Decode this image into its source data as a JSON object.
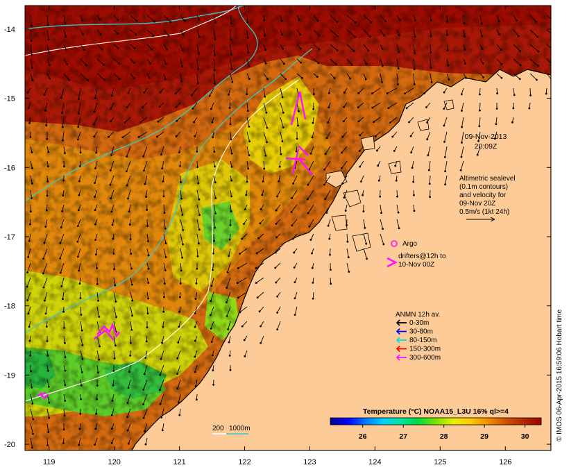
{
  "map": {
    "lat_ticks": [
      {
        "label": "-14",
        "value": -14
      },
      {
        "label": "-15",
        "value": -15
      },
      {
        "label": "-16",
        "value": -16
      },
      {
        "label": "-17",
        "value": -17
      },
      {
        "label": "-18",
        "value": -18
      },
      {
        "label": "-19",
        "value": -19
      },
      {
        "label": "-20",
        "value": -20
      }
    ],
    "lon_ticks": [
      {
        "label": "119",
        "value": 119
      },
      {
        "label": "120",
        "value": 120
      },
      {
        "label": "121",
        "value": 121
      },
      {
        "label": "122",
        "value": 122
      },
      {
        "label": "123",
        "value": 123
      },
      {
        "label": "124",
        "value": 124
      },
      {
        "label": "125",
        "value": 125
      },
      {
        "label": "126",
        "value": 126
      }
    ],
    "lon_range": [
      118.63,
      126.7
    ],
    "lat_range": [
      -20.09,
      -13.66
    ],
    "colors": {
      "land": "#fccb98",
      "coast": "#000000",
      "contour_200m": "#ffffff",
      "contour_1000m": "#3cc8c8",
      "argo_drifter": "#ff10ff"
    }
  },
  "timestamp": {
    "line1": "09-Nov-2013",
    "line2": "20:09Z"
  },
  "altimetry_note": {
    "lines": [
      "Altimetric sealevel",
      "(0.1m contours)",
      "and velocity for",
      "09-Nov 20Z",
      "0.5m/s (1kt 24h)"
    ]
  },
  "argo": {
    "label": "Argo"
  },
  "drifters": {
    "line1": "drifters@12h to",
    "line2": "10-Nov 00Z"
  },
  "anmn": {
    "title": "ANMN 12h av.",
    "items": [
      {
        "label": "0-30m",
        "color": "#000000"
      },
      {
        "label": "30-80m",
        "color": "#0000ff"
      },
      {
        "label": "80-150m",
        "color": "#00e0e0"
      },
      {
        "label": "150-300m",
        "color": "#ff0000"
      },
      {
        "label": "300-600m",
        "color": "#ff10ff"
      }
    ]
  },
  "isobath_legend": {
    "label_200": "200",
    "label_1000": "1000m"
  },
  "colorbar": {
    "title": "Temperature (°C) NOAA15_L3U 16% ql>=4",
    "range": [
      25.2,
      30.4
    ],
    "ticks": [
      {
        "label": "26",
        "value": 26
      },
      {
        "label": "27",
        "value": 27
      },
      {
        "label": "28",
        "value": 28
      },
      {
        "label": "29",
        "value": 29
      },
      {
        "label": "30",
        "value": 30
      }
    ],
    "stops": [
      "#000090",
      "#0000ff",
      "#0078ff",
      "#00d2ff",
      "#00e6a0",
      "#00dc3c",
      "#78e600",
      "#e6f000",
      "#ffc800",
      "#f08c00",
      "#d25000",
      "#b42800",
      "#a00000"
    ]
  },
  "credit": "© IMOS 06-Apr-2015 16:59:06 Hobart time"
}
